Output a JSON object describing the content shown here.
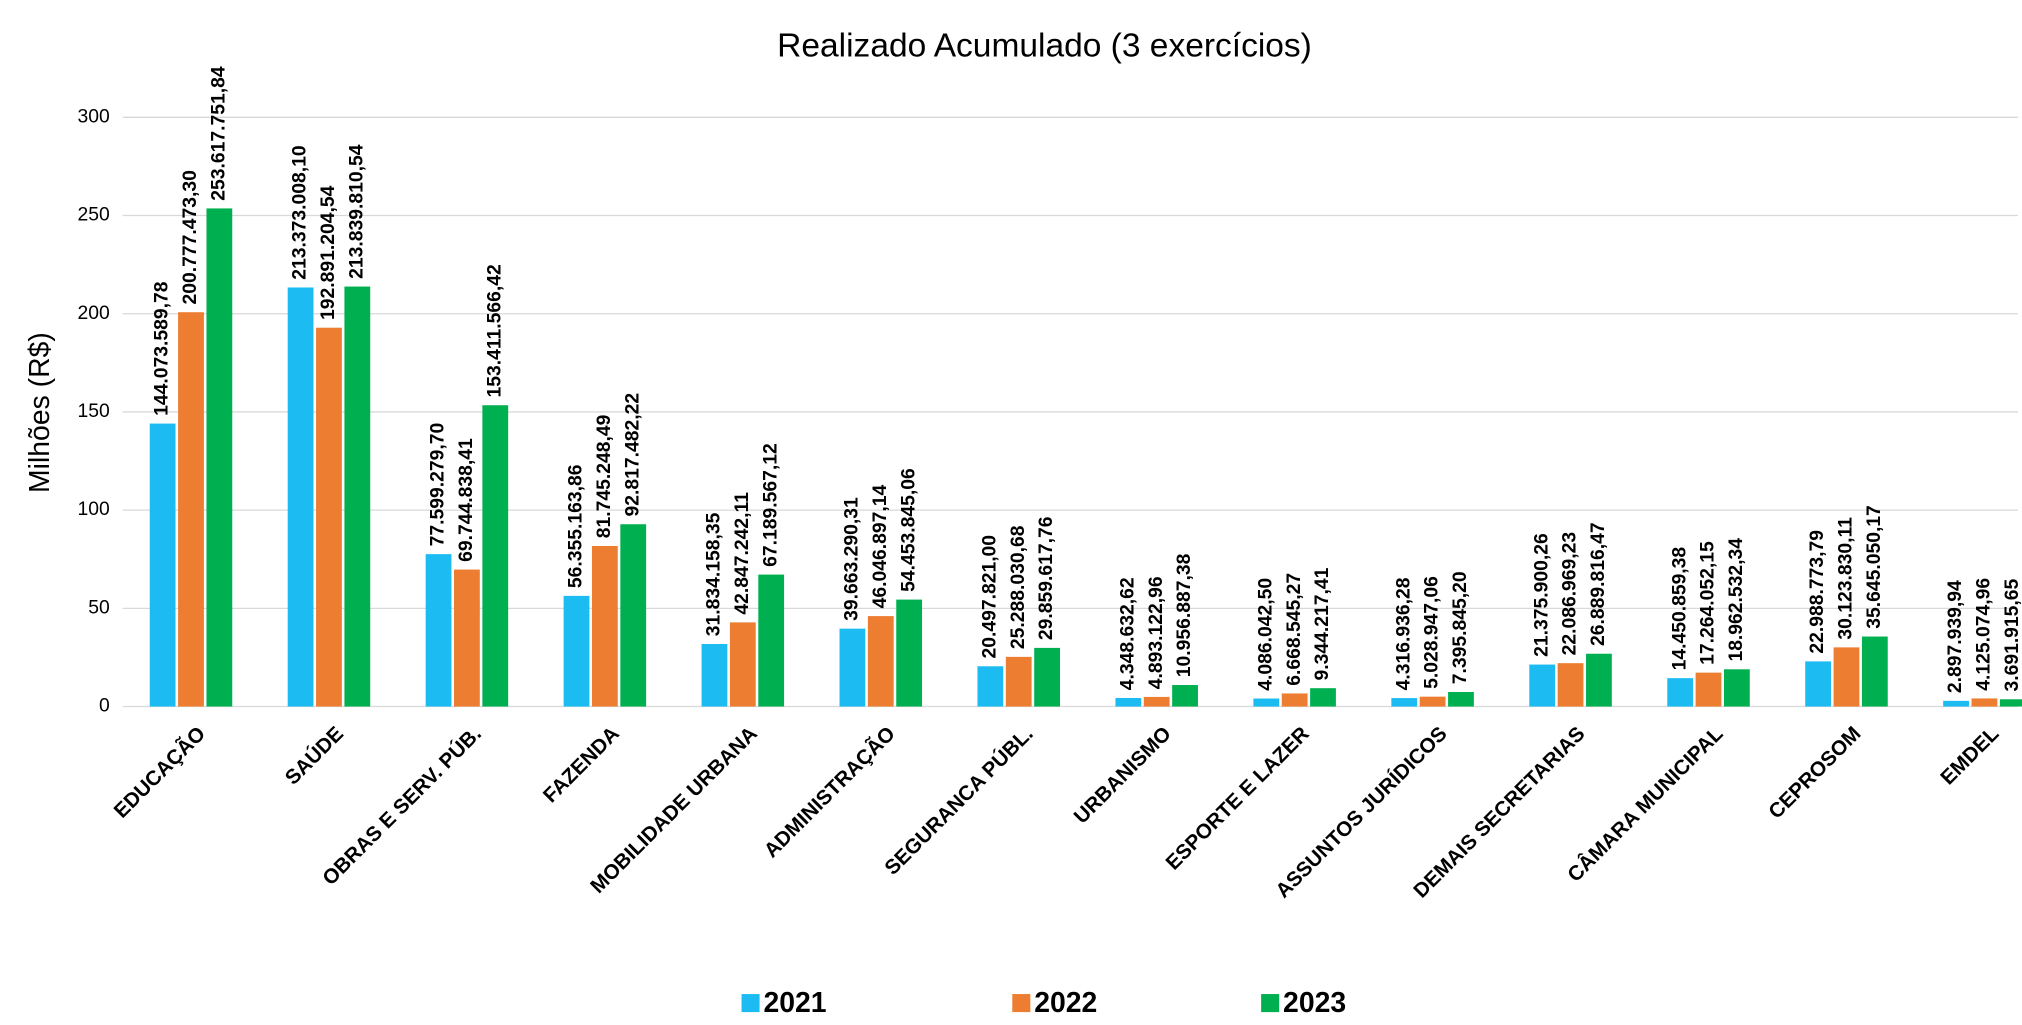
{
  "chart_data": {
    "type": "bar",
    "subtitle": "Realizado Acumulado (3 exercícios)",
    "y_label": "Milhões (R$)",
    "categories": [
      "EDUCAÇÃO",
      "SAÚDE",
      "OBRAS E SERV. PÚB.",
      "FAZENDA",
      "MOBILIDADE URBANA",
      "ADMINISTRAÇÃO",
      "SEGURANCA PÚBL.",
      "URBANISMO",
      "ESPORTE E LAZER",
      "ASSUNTOS JURÍDICOS",
      "DEMAIS SECRETARIAS",
      "CÂMARA MUNICIPAL",
      "CEPROSOM",
      "EMDEL"
    ],
    "series": [
      {
        "name": "2021",
        "color": "#1cbcf2",
        "values": [
          144.07358978,
          213.3730081,
          77.5992797,
          56.35516386,
          31.83415835,
          39.66329031,
          20.497821,
          4.34863262,
          4.0860425,
          4.31693628,
          21.37590026,
          14.45085938,
          22.98877379,
          2.89793994
        ],
        "value_labels": [
          "144.073.589,78",
          "213.373.008,10",
          "77.599.279,70",
          "56.355.163,86",
          "31.834.158,35",
          "39.663.290,31",
          "20.497.821,00",
          "4.348.632,62",
          "4.086.042,50",
          "4.316.936,28",
          "21.375.900,26",
          "14.450.859,38",
          "22.988.773,79",
          "2.897.939,94"
        ]
      },
      {
        "name": "2022",
        "color": "#ed7d31",
        "values": [
          200.7774733,
          192.89120454,
          69.74483841,
          81.74524849,
          42.84724211,
          46.04689714,
          25.28803068,
          4.89312296,
          6.66854527,
          5.02894706,
          22.08696923,
          17.26405215,
          30.12383011,
          4.12507496
        ],
        "value_labels": [
          "200.777.473,30",
          "192.891.204,54",
          "69.744.838,41",
          "81.745.248,49",
          "42.847.242,11",
          "46.046.897,14",
          "25.288.030,68",
          "4.893.122,96",
          "6.668.545,27",
          "5.028.947,06",
          "22.086.969,23",
          "17.264.052,15",
          "30.123.830,11",
          "4.125.074,96"
        ]
      },
      {
        "name": "2023",
        "color": "#00b050",
        "values": [
          253.61775184,
          213.83981054,
          153.41156642,
          92.81748222,
          67.18956712,
          54.45384506,
          29.85961776,
          10.95688738,
          9.34421741,
          7.3958452,
          26.88981647,
          18.96253234,
          35.64505017,
          3.69191565
        ],
        "value_labels": [
          "253.617.751,84",
          "213.839.810,54",
          "153.411.566,42",
          "92.817.482,22",
          "67.189.567,12",
          "54.453.845,06",
          "29.859.617,76",
          "10.956.887,38",
          "9.344.217,41",
          "7.395.845,20",
          "26.889.816,47",
          "18.962.532,34",
          "35.645.050,17",
          "3.691.915,65"
        ]
      }
    ],
    "ylim": [
      0,
      300
    ],
    "yticks": [
      0,
      50,
      100,
      150,
      200,
      250,
      300
    ],
    "grid": true
  }
}
